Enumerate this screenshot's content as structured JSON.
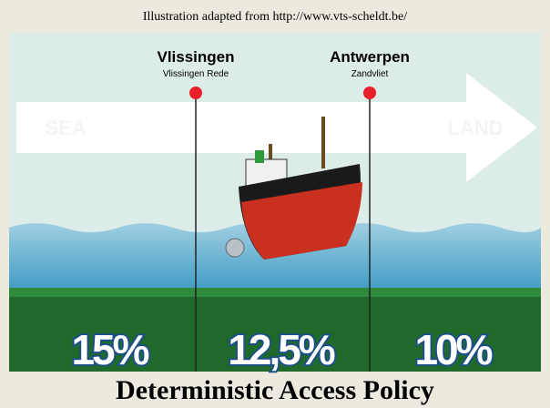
{
  "caption": "Illustration adapted from http://www.vts-scheldt.be/",
  "locations": [
    {
      "name": "Vlissingen",
      "sublabel": "Vlissingen Rede"
    },
    {
      "name": "Antwerpen",
      "sublabel": "Zandvliet"
    }
  ],
  "direction": {
    "from": "SEA",
    "to": "LAND"
  },
  "zones": [
    "15%",
    "12,5%",
    "10%"
  ],
  "title": "Deterministic Access Policy"
}
